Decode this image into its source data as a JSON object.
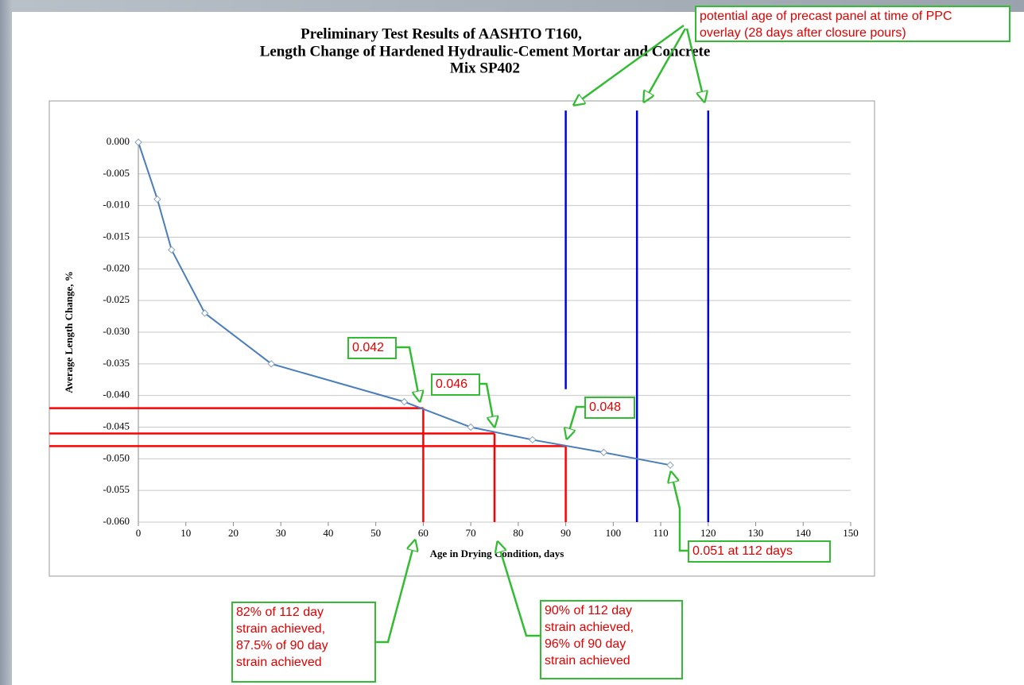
{
  "chart_data": {
    "type": "line",
    "title": [
      "Preliminary Test Results of AASHTO T160,",
      "Length Change of Hardened Hydraulic-Cement Mortar and Concrete",
      "Mix SP402"
    ],
    "x_label": "Age in Drying Condition, days",
    "y_label": "Average Length Change, %",
    "x": [
      0,
      4,
      7,
      14,
      28,
      56,
      70,
      83,
      98,
      112
    ],
    "series": [
      {
        "color": "#4a7ebb",
        "values": [
          0,
          -0.009,
          -0.017,
          -0.027,
          -0.035,
          -0.041,
          -0.045,
          -0.047,
          -0.049,
          -0.051
        ]
      }
    ],
    "xlim": [
      0,
      150
    ],
    "xticks": [
      0,
      10,
      20,
      30,
      40,
      50,
      60,
      70,
      80,
      90,
      100,
      110,
      120,
      130,
      140,
      150
    ],
    "ylim": [
      -0.06,
      0
    ],
    "yticks": [
      {
        "value": 0,
        "label": "0.000"
      },
      {
        "value": -0.005,
        "label": "-0.005"
      },
      {
        "value": -0.01,
        "label": "-0.010"
      },
      {
        "value": -0.015,
        "label": "-0.015"
      },
      {
        "value": -0.02,
        "label": "-0.020"
      },
      {
        "value": -0.025,
        "label": "-0.025"
      },
      {
        "value": -0.03,
        "label": "-0.030"
      },
      {
        "value": -0.035,
        "label": "-0.035"
      },
      {
        "value": -0.04,
        "label": "-0.040"
      },
      {
        "value": -0.045,
        "label": "-0.045"
      },
      {
        "value": -0.05,
        "label": "-0.050"
      },
      {
        "value": -0.055,
        "label": "-0.055"
      },
      {
        "value": -0.06,
        "label": "-0.060"
      }
    ],
    "grid": true,
    "red_lines": [
      {
        "x": 60,
        "y": -0.042,
        "color": "#ff0000"
      },
      {
        "x": 75,
        "y": -0.046,
        "color": "#ff0000"
      },
      {
        "x": 90,
        "y": -0.048,
        "color": "#ff0000"
      }
    ],
    "blue_lines": [
      {
        "x": 90,
        "y_top": 0.005,
        "y_bottom": -0.039,
        "color": "#0000dd"
      },
      {
        "x": 105,
        "y_top": 0.005,
        "y_bottom": -0.06,
        "color": "#0000dd"
      },
      {
        "x": 120,
        "y_top": 0.005,
        "y_bottom": -0.06,
        "color": "#0000dd"
      }
    ],
    "annotations": [
      [
        "potential age of precast panel at time of PPC",
        "overlay (28 days after closure pours)"
      ],
      [
        "0.042"
      ],
      [
        "0.046"
      ],
      [
        "0.048"
      ],
      [
        "0.051 at 112 days"
      ],
      [
        "82% of 112 day",
        "strain achieved,",
        "87.5% of 90 day",
        "strain achieved"
      ],
      [
        "90% of 112 day",
        "strain achieved,",
        "96% of 90 day",
        "strain achieved"
      ]
    ]
  }
}
